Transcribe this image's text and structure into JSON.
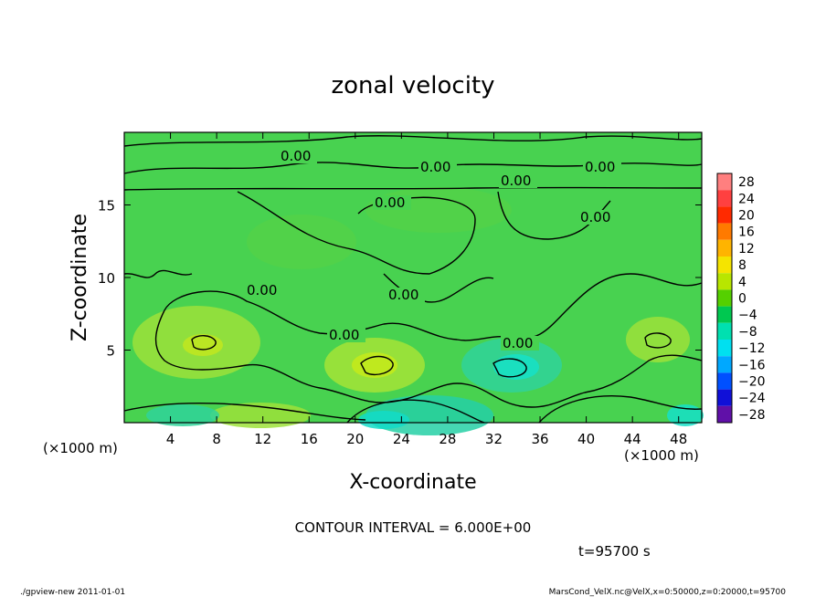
{
  "chart_data": {
    "type": "heatmap",
    "title": "zonal velocity",
    "xlabel": "X-coordinate",
    "ylabel": "Z-coordinate",
    "x_unit": "(×1000 m)",
    "z_unit": "(×1000 m)",
    "xlim": [
      0,
      50
    ],
    "ylim": [
      0,
      20
    ],
    "x_ticks": [
      4,
      8,
      12,
      16,
      20,
      24,
      28,
      32,
      36,
      40,
      44,
      48
    ],
    "y_ticks": [
      5,
      10,
      15
    ],
    "colorbar_levels": [
      "28",
      "24",
      "20",
      "16",
      "12",
      "8",
      "4",
      "0",
      "-4",
      "-8",
      "-12",
      "-16",
      "-20",
      "-24",
      "-28"
    ],
    "colorbar_colors": [
      "#ff7f7f",
      "#ff4040",
      "#ff2a00",
      "#ff7a00",
      "#ffb400",
      "#f5e400",
      "#b8e600",
      "#55d000",
      "#00c850",
      "#00e0b0",
      "#00e0f0",
      "#00a8ff",
      "#0050ff",
      "#1010d8",
      "#6010a8"
    ],
    "contour_labels": [
      "0.00",
      "0.00",
      "0.00",
      "0.00",
      "0.00",
      "0.00",
      "0.00",
      "0.00",
      "0.00",
      "0.00"
    ],
    "contour_interval": "CONTOUR INTERVAL = 6.000E+00",
    "time": "t=95700 s",
    "footer_left": "./gpview-new  2011-01-01",
    "footer_right": "MarsCond_VelX.nc@VelX,x=0:50000,z=0:20000,t=95700"
  }
}
